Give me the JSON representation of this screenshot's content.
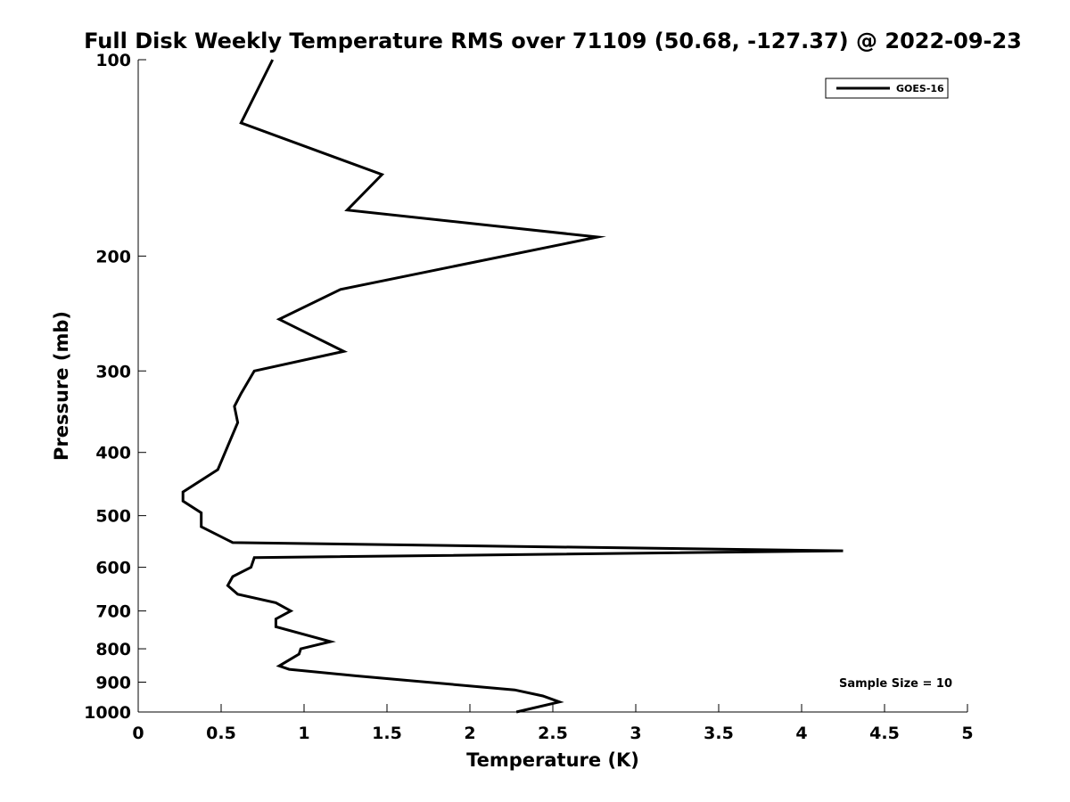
{
  "chart_data": {
    "type": "line",
    "title": "Full Disk Weekly Temperature RMS over 71109 (50.68, -127.37) @ 2022-09-23",
    "xlabel": "Temperature (K)",
    "ylabel": "Pressure (mb)",
    "xlim": [
      0,
      5
    ],
    "ylim": [
      100,
      1000
    ],
    "y_scale": "log",
    "y_reversed": true,
    "grid": false,
    "x_ticks": [
      0,
      0.5,
      1,
      1.5,
      2,
      2.5,
      3,
      3.5,
      4,
      4.5,
      5
    ],
    "x_tick_labels": [
      "0",
      "0.5",
      "1",
      "1.5",
      "2",
      "2.5",
      "3",
      "3.5",
      "4",
      "4.5",
      "5"
    ],
    "y_ticks": [
      100,
      200,
      300,
      400,
      500,
      600,
      700,
      800,
      900,
      1000
    ],
    "y_tick_labels": [
      "100",
      "200",
      "300",
      "400",
      "500",
      "600",
      "700",
      "800",
      "900",
      "1000"
    ],
    "legend_position": "top-right",
    "annotation": "Sample Size = 10",
    "series": [
      {
        "name": "GOES-16",
        "color": "#000000",
        "points": [
          {
            "x": 0.81,
            "y": 100
          },
          {
            "x": 0.62,
            "y": 125
          },
          {
            "x": 1.47,
            "y": 150
          },
          {
            "x": 1.26,
            "y": 170
          },
          {
            "x": 2.77,
            "y": 187
          },
          {
            "x": 1.22,
            "y": 225
          },
          {
            "x": 0.85,
            "y": 250
          },
          {
            "x": 1.05,
            "y": 265
          },
          {
            "x": 1.24,
            "y": 280
          },
          {
            "x": 0.7,
            "y": 300
          },
          {
            "x": 0.62,
            "y": 325
          },
          {
            "x": 0.58,
            "y": 340
          },
          {
            "x": 0.6,
            "y": 360
          },
          {
            "x": 0.48,
            "y": 425
          },
          {
            "x": 0.27,
            "y": 460
          },
          {
            "x": 0.27,
            "y": 475
          },
          {
            "x": 0.38,
            "y": 495
          },
          {
            "x": 0.38,
            "y": 520
          },
          {
            "x": 0.57,
            "y": 550
          },
          {
            "x": 4.25,
            "y": 566
          },
          {
            "x": 0.7,
            "y": 580
          },
          {
            "x": 0.68,
            "y": 600
          },
          {
            "x": 0.57,
            "y": 620
          },
          {
            "x": 0.54,
            "y": 640
          },
          {
            "x": 0.6,
            "y": 660
          },
          {
            "x": 0.83,
            "y": 680
          },
          {
            "x": 0.92,
            "y": 700
          },
          {
            "x": 0.83,
            "y": 720
          },
          {
            "x": 0.83,
            "y": 740
          },
          {
            "x": 1.16,
            "y": 780
          },
          {
            "x": 0.98,
            "y": 800
          },
          {
            "x": 0.97,
            "y": 815
          },
          {
            "x": 0.85,
            "y": 850
          },
          {
            "x": 0.91,
            "y": 860
          },
          {
            "x": 1.31,
            "y": 880
          },
          {
            "x": 2.27,
            "y": 925
          },
          {
            "x": 2.44,
            "y": 945
          },
          {
            "x": 2.54,
            "y": 965
          },
          {
            "x": 2.28,
            "y": 1000
          }
        ]
      }
    ]
  }
}
